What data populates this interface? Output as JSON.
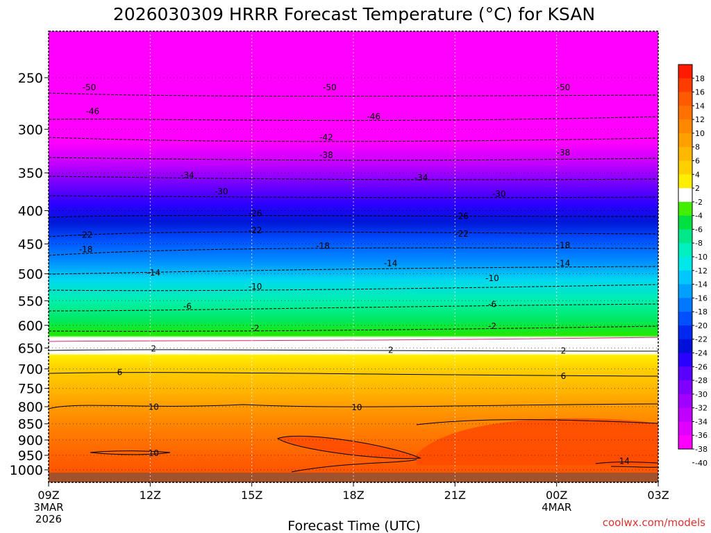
{
  "chart_data": {
    "type": "heatmap",
    "title": "2026030309 HRRR Forecast Temperature (°C) for KSAN",
    "xlabel": "Forecast Time (UTC)",
    "ylabel": "",
    "watermark": "coolwx.com/models",
    "x_ticks": [
      {
        "label": "09Z",
        "sub": [
          "3MAR",
          "2026"
        ],
        "hour": 0
      },
      {
        "label": "12Z",
        "sub": [],
        "hour": 3
      },
      {
        "label": "15Z",
        "sub": [],
        "hour": 6
      },
      {
        "label": "18Z",
        "sub": [],
        "hour": 9
      },
      {
        "label": "21Z",
        "sub": [],
        "hour": 12
      },
      {
        "label": "00Z",
        "sub": [
          "4MAR"
        ],
        "hour": 15
      },
      {
        "label": "03Z",
        "sub": [],
        "hour": 18
      }
    ],
    "xlim": [
      0,
      18
    ],
    "y_ticks": [
      {
        "label": "250",
        "p": 250
      },
      {
        "label": "300",
        "p": 300
      },
      {
        "label": "350",
        "p": 350
      },
      {
        "label": "400",
        "p": 400
      },
      {
        "label": "450",
        "p": 450
      },
      {
        "label": "500",
        "p": 500
      },
      {
        "label": "550",
        "p": 550
      },
      {
        "label": "600",
        "p": 600
      },
      {
        "label": "650",
        "p": 650
      },
      {
        "label": "700",
        "p": 700
      },
      {
        "label": "750",
        "p": 750
      },
      {
        "label": "800",
        "p": 800
      },
      {
        "label": "850",
        "p": 850
      },
      {
        "label": "900",
        "p": 900
      },
      {
        "label": "950",
        "p": 950
      },
      {
        "label": "1000",
        "p": 1000
      }
    ],
    "ylim_hPa": [
      200,
      1030
    ],
    "colorbar": {
      "labels": [
        "18",
        "16",
        "14",
        "12",
        "10",
        "8",
        "6",
        "4",
        "2",
        "-2",
        "-4",
        "-6",
        "-8",
        "-10",
        "-12",
        "-14",
        "-16",
        "-18",
        "-20",
        "-22",
        "-24",
        "-26",
        "-28",
        "-30",
        "-32",
        "-34",
        "-36",
        "-38",
        "-40"
      ],
      "colors": [
        "#ff1a00",
        "#ff3c00",
        "#ff5a00",
        "#ff7200",
        "#ff8800",
        "#ffa000",
        "#ffb800",
        "#ffd000",
        "#ffee00",
        "#ffffff",
        "#44ee00",
        "#00e040",
        "#00e88a",
        "#00f0c0",
        "#00e8e8",
        "#00c8ff",
        "#00a0ff",
        "#0078ff",
        "#0050ff",
        "#0028f0",
        "#0010d8",
        "#2a00ff",
        "#5a00ff",
        "#8000ff",
        "#a000ff",
        "#c000ff",
        "#e000ff",
        "#ff00ff"
      ]
    },
    "temperature_contours": [
      {
        "value": -50,
        "labels": [
          "-50",
          "-50",
          "-50"
        ],
        "hour": [
          1.2,
          8.3,
          15.2
        ],
        "p": [
          258,
          258,
          258
        ]
      },
      {
        "value": -46,
        "labels": [
          "-46",
          "-46"
        ],
        "hour": [
          1.3,
          9.6
        ],
        "p": [
          281,
          286
        ]
      },
      {
        "value": -42,
        "labels": [
          "-42"
        ],
        "hour": [
          8.2
        ],
        "p": [
          308
        ]
      },
      {
        "value": -38,
        "labels": [
          "-38",
          "-38"
        ],
        "hour": [
          8.2,
          15.2
        ],
        "p": [
          328,
          325
        ]
      },
      {
        "value": -34,
        "labels": [
          "-34",
          "-34"
        ],
        "hour": [
          4.1,
          11.0
        ],
        "p": [
          352,
          355
        ]
      },
      {
        "value": -30,
        "labels": [
          "-30",
          "-30"
        ],
        "hour": [
          5.1,
          13.3
        ],
        "p": [
          373,
          376
        ]
      },
      {
        "value": -26,
        "labels": [
          "-26",
          "-26"
        ],
        "hour": [
          6.1,
          12.2
        ],
        "p": [
          403,
          407
        ]
      },
      {
        "value": -22,
        "labels": [
          "-22",
          "-22",
          "-22"
        ],
        "hour": [
          1.1,
          6.1,
          12.2
        ],
        "p": [
          435,
          428,
          433
        ]
      },
      {
        "value": -18,
        "labels": [
          "-18",
          "-18",
          "-18"
        ],
        "hour": [
          1.1,
          8.1,
          15.2
        ],
        "p": [
          458,
          452,
          451
        ]
      },
      {
        "value": -14,
        "labels": [
          "-14",
          "-14",
          "-14"
        ],
        "hour": [
          3.1,
          10.1,
          15.2
        ],
        "p": [
          497,
          481,
          481
        ]
      },
      {
        "value": -10,
        "labels": [
          "-10",
          "-10"
        ],
        "hour": [
          6.1,
          13.1
        ],
        "p": [
          522,
          507
        ]
      },
      {
        "value": -6,
        "labels": [
          "-6",
          "-6"
        ],
        "hour": [
          4.1,
          13.1
        ],
        "p": [
          560,
          556
        ]
      },
      {
        "value": -2,
        "labels": [
          "-2",
          "-2"
        ],
        "hour": [
          6.1,
          13.1
        ],
        "p": [
          605,
          600
        ]
      },
      {
        "value": 2,
        "labels": [
          "2",
          "2",
          "2"
        ],
        "hour": [
          3.1,
          10.1,
          15.2
        ],
        "p": [
          650,
          653,
          655
        ]
      },
      {
        "value": 6,
        "labels": [
          "6",
          "6"
        ],
        "hour": [
          2.1,
          15.2
        ],
        "p": [
          707,
          716
        ]
      },
      {
        "value": 10,
        "labels": [
          "10",
          "10",
          "10"
        ],
        "hour": [
          3.1,
          9.1,
          3.1
        ],
        "p": [
          799,
          800,
          941
        ]
      },
      {
        "value": 14,
        "labels": [
          "14"
        ],
        "hour": [
          17.0
        ],
        "p": [
          968
        ]
      }
    ]
  }
}
